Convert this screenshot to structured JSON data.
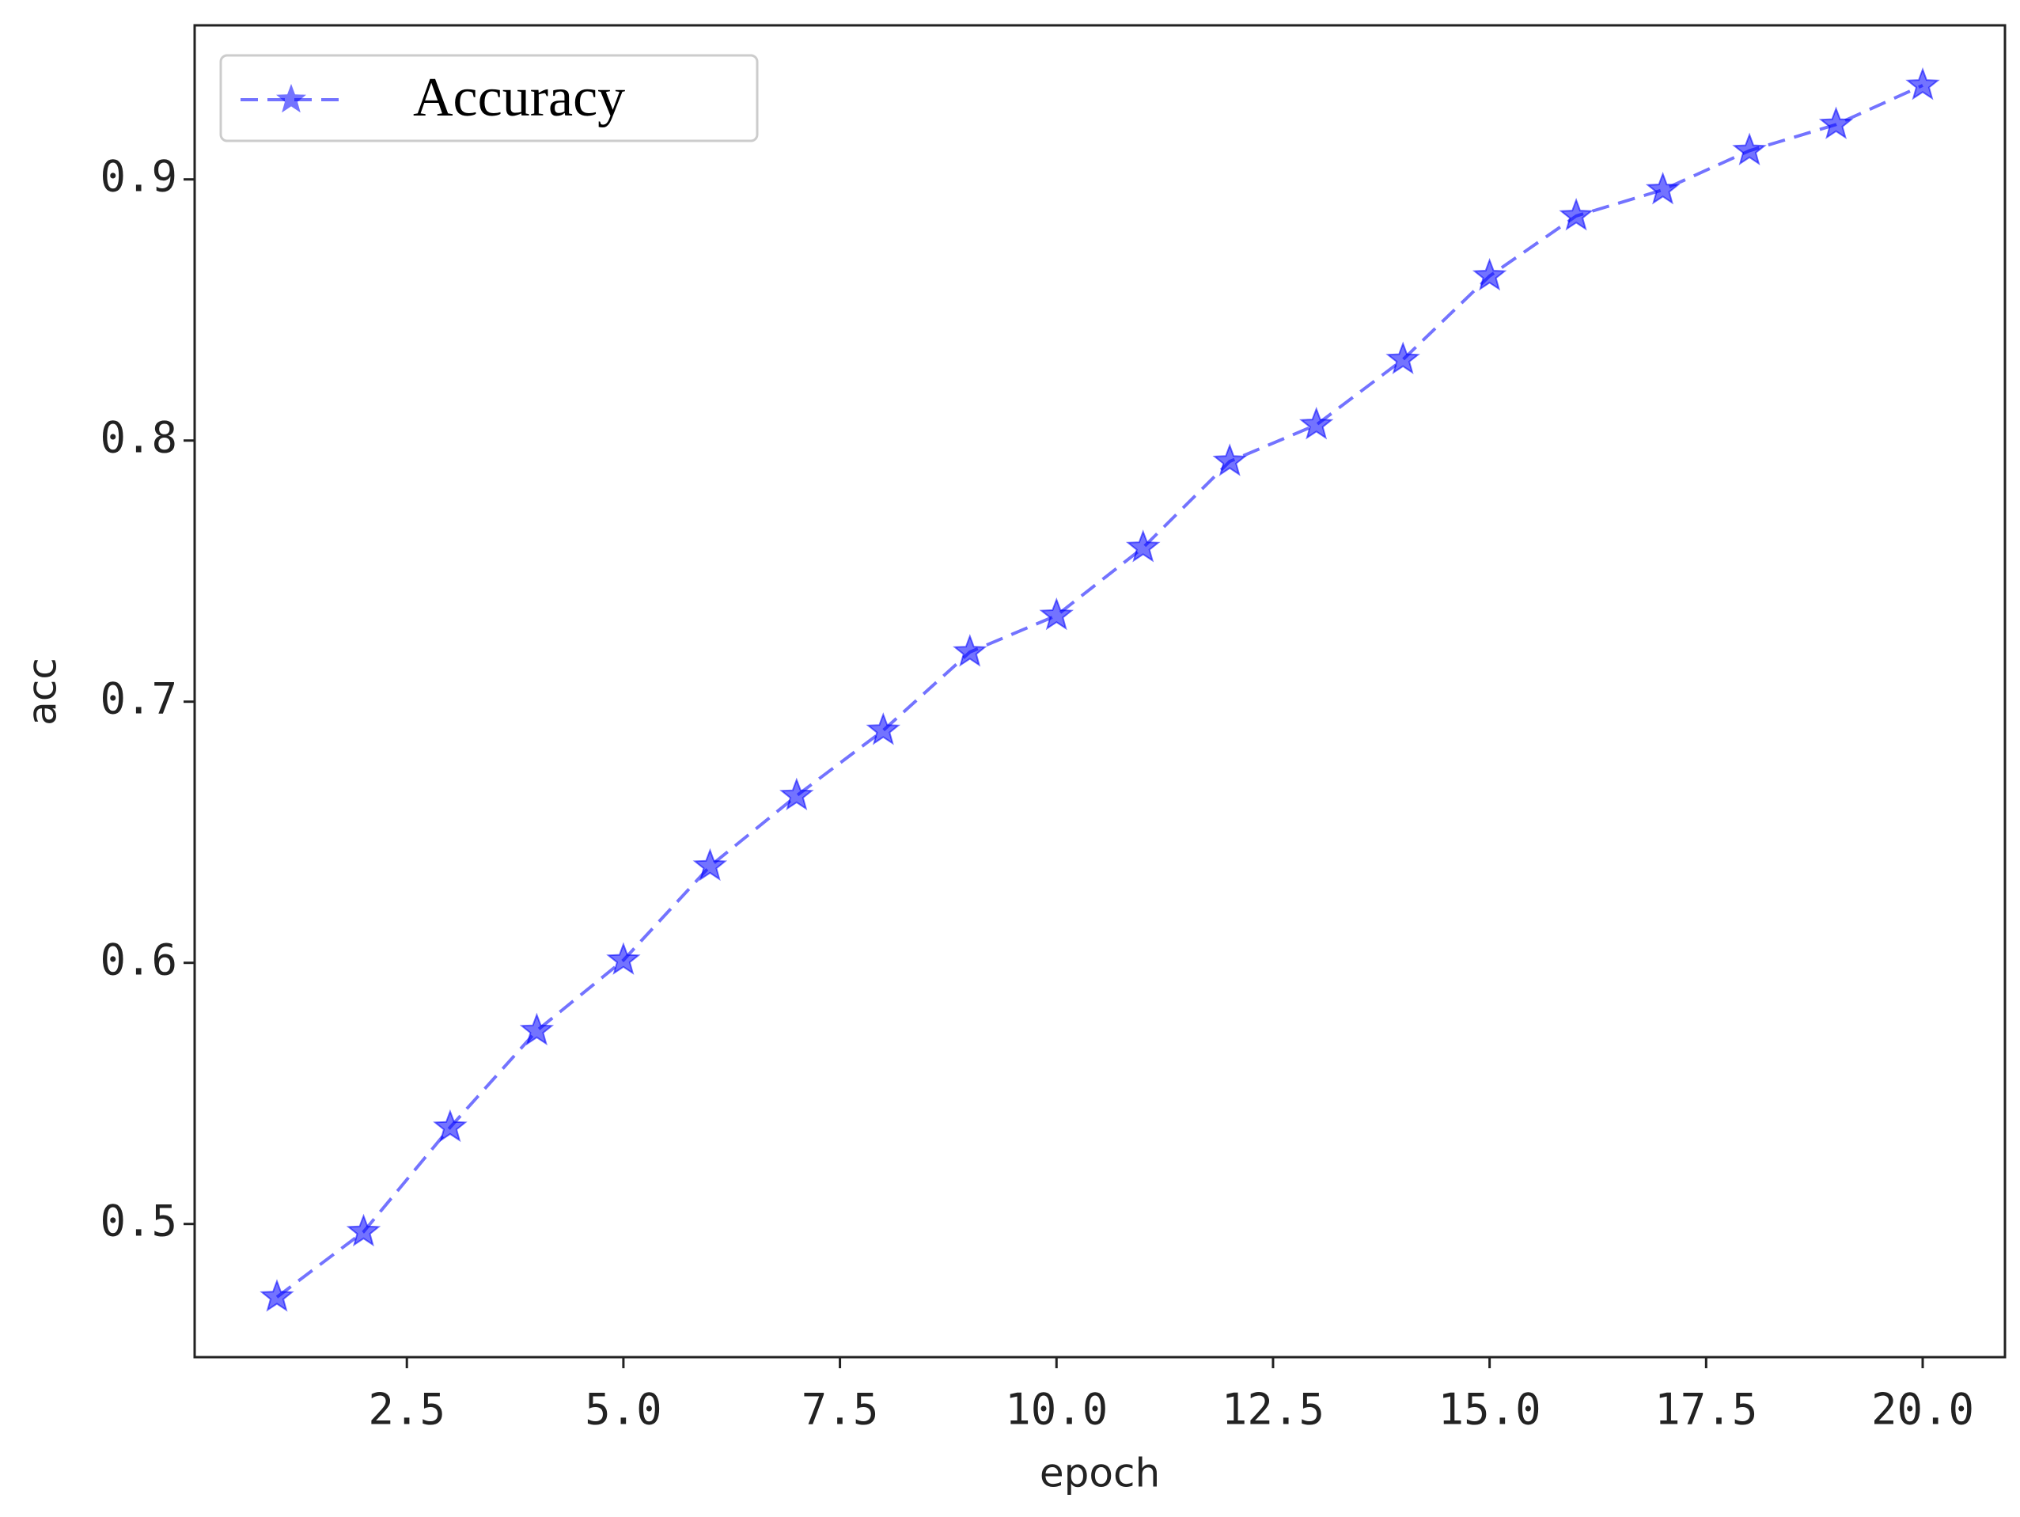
{
  "chart_data": {
    "type": "line",
    "xlabel": "epoch",
    "ylabel": "acc",
    "x": [
      1,
      2,
      3,
      4,
      5,
      6,
      7,
      8,
      9,
      10,
      11,
      12,
      13,
      14,
      15,
      16,
      17,
      18,
      19,
      20
    ],
    "series": [
      {
        "name": "Accuracy",
        "color": "#0000ff",
        "opacity": 0.55,
        "linestyle": "dashed",
        "marker": "star",
        "values": [
          0.472,
          0.497,
          0.537,
          0.574,
          0.601,
          0.637,
          0.664,
          0.689,
          0.719,
          0.733,
          0.759,
          0.792,
          0.806,
          0.831,
          0.863,
          0.886,
          0.896,
          0.911,
          0.921,
          0.936
        ]
      }
    ],
    "xlim": [
      0.05,
      20.95
    ],
    "ylim": [
      0.449,
      0.959
    ],
    "xticks": [
      2.5,
      {
        "value": 5,
        "label": "5.0"
      },
      7.5,
      {
        "value": 10,
        "label": "10.0"
      },
      12.5,
      {
        "value": 15,
        "label": "15.0"
      },
      17.5,
      {
        "value": 20,
        "label": "20.0"
      }
    ],
    "yticks": [
      0.5,
      0.6,
      0.7,
      0.8,
      0.9
    ],
    "grid": false,
    "legend": "upper left"
  }
}
